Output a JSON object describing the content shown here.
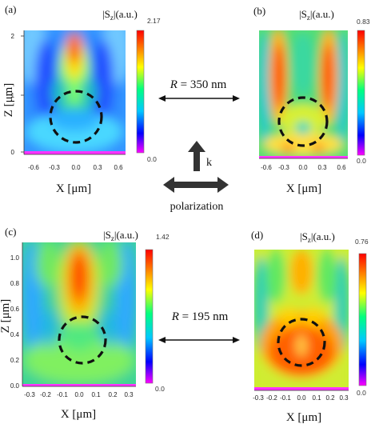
{
  "panels": [
    {
      "id": "a",
      "label": "(a)",
      "quantity": "|S",
      "quantity_sub": "z",
      "quantity_unit": "|(a.u.)",
      "cb_max": "2.17",
      "cb_min": "0.0",
      "xlabel": "X [μm]",
      "ylabel": "Z [μm]",
      "xticks": [
        "-0.6",
        "-0.3",
        "0.0",
        "0.3",
        "0.6"
      ],
      "yticks": [
        "0",
        "1",
        "2"
      ]
    },
    {
      "id": "b",
      "label": "(b)",
      "quantity": "|S",
      "quantity_sub": "z",
      "quantity_unit": "|(a.u.)",
      "cb_max": "0.83",
      "cb_min": "0.0",
      "xlabel": "X [μm]",
      "xticks": [
        "-0.6",
        "-0.3",
        "0.0",
        "0.3",
        "0.6"
      ]
    },
    {
      "id": "c",
      "label": "(c)",
      "quantity": "|S",
      "quantity_sub": "z",
      "quantity_unit": "|(a.u.)",
      "cb_max": "1.42",
      "cb_min": "0.0",
      "xlabel": "X [μm]",
      "ylabel": "Z [μm]",
      "xticks": [
        "-0.3",
        "-0.2",
        "-0.1",
        "0.0",
        "0.1",
        "0.2",
        "0.3"
      ],
      "yticks": [
        "0.0",
        "0.2",
        "0.4",
        "0.6",
        "0.8",
        "1.0"
      ]
    },
    {
      "id": "d",
      "label": "(d)",
      "quantity": "|S",
      "quantity_sub": "z",
      "quantity_unit": "|(a.u.)",
      "cb_max": "0.76",
      "cb_min": "0.0",
      "xlabel": "X [μm]",
      "xticks": [
        "-0.3",
        "-0.2",
        "-0.1",
        "0.0",
        "0.1",
        "0.2",
        "0.3"
      ]
    }
  ],
  "annotations": {
    "top_radius_var": "R",
    "top_radius_value": " = 350 nm",
    "bottom_radius_var": "R",
    "bottom_radius_value": " = 195 nm",
    "k_label": "k",
    "polarization_label": "polarization"
  },
  "colors": {
    "colormap": [
      "#ff00ff",
      "#0000ff",
      "#00c8ff",
      "#00ff80",
      "#ffff00",
      "#ff8000",
      "#ff0000"
    ],
    "substrate": "#ff33ff"
  }
}
